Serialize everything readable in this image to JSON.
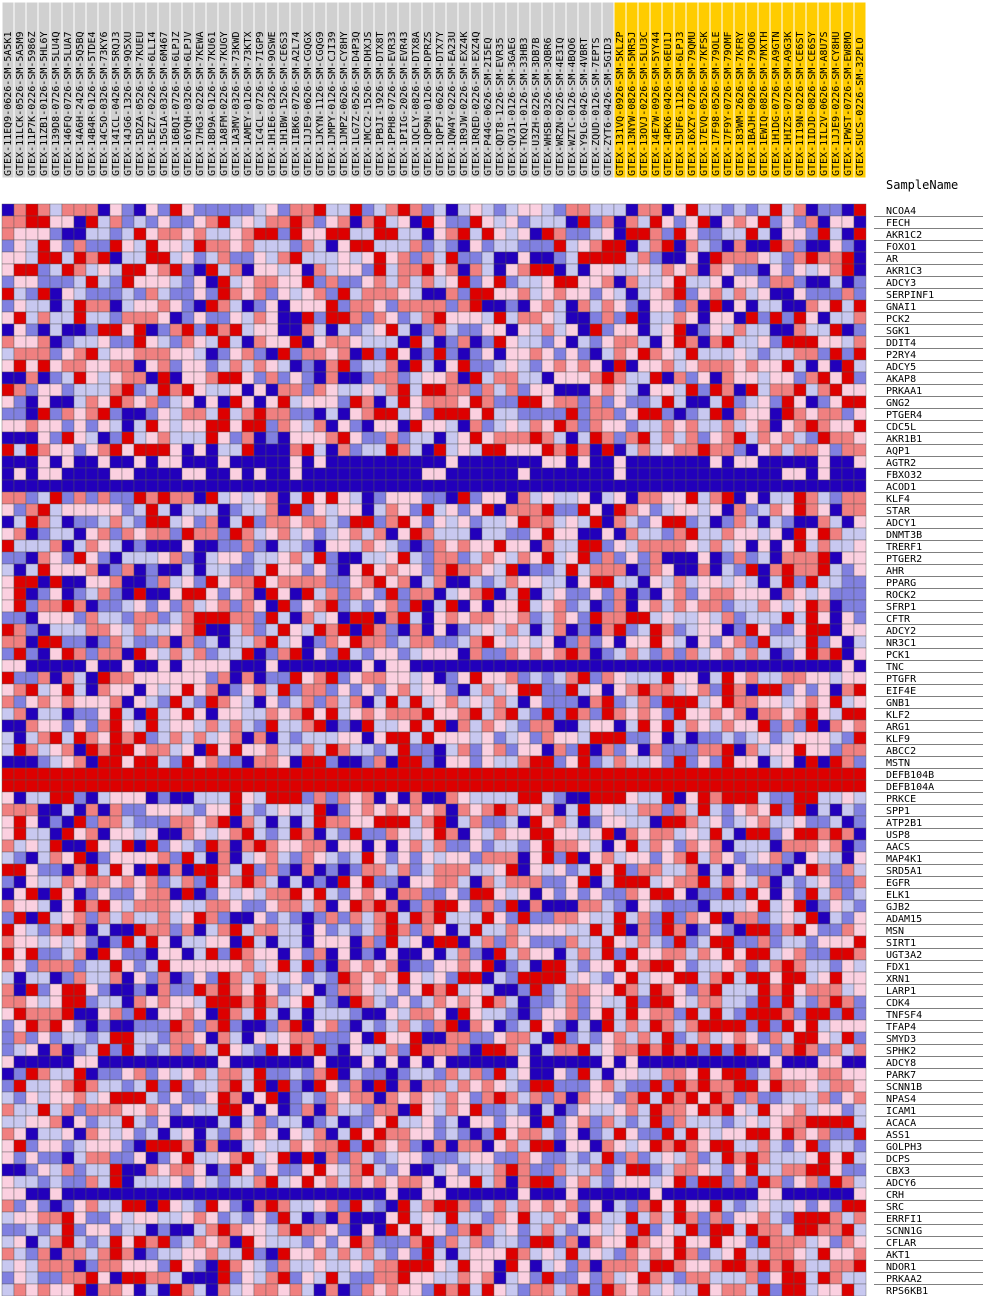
{
  "chart_data": {
    "type": "heatmap",
    "title": "",
    "column_header_label": "SampleName",
    "colors": {
      "high": "#dd0000",
      "mid_high": "#f08080",
      "mid": "#fbd0e0",
      "mid_low": "#c8c8f0",
      "low": "#8080e0",
      "lowest": "#2200bb",
      "highlight_group": "#ffcc00",
      "grid": "#555555"
    },
    "samples": [
      {
        "name": "GTEX-11EQ9-0626-SM-5A5K1",
        "group": "a"
      },
      {
        "name": "GTEX-11LCK-0526-SM-5A5M9",
        "group": "a"
      },
      {
        "name": "GTEX-11P7K-0226-SM-5986Z",
        "group": "a"
      },
      {
        "name": "GTEX-11ZB1-0126-SM-5HL6Y",
        "group": "a"
      },
      {
        "name": "GTEX-139D8-0726-SM-5LU4Q",
        "group": "a"
      },
      {
        "name": "GTEX-146FQ-0726-SM-5LUA7",
        "group": "a"
      },
      {
        "name": "GTEX-14A6H-2426-SM-5Q5BQ",
        "group": "a"
      },
      {
        "name": "GTEX-14B4R-0126-SM-5TDE4",
        "group": "a"
      },
      {
        "name": "GTEX-14C5O-0326-SM-73KY6",
        "group": "a"
      },
      {
        "name": "GTEX-14ICL-0426-SM-5RQJ3",
        "group": "a"
      },
      {
        "name": "GTEX-14JG6-1326-SM-9Q5XU",
        "group": "a"
      },
      {
        "name": "GTEX-15DZA-0526-SM-7KUEU",
        "group": "a"
      },
      {
        "name": "GTEX-15EZ7-0226-SM-6LLI4",
        "group": "a"
      },
      {
        "name": "GTEX-15G1A-0326-SM-6M467",
        "group": "a"
      },
      {
        "name": "GTEX-16BQI-0726-SM-6LPJZ",
        "group": "a"
      },
      {
        "name": "GTEX-16YQH-0326-SM-6LPJV",
        "group": "a"
      },
      {
        "name": "GTEX-17HG3-0226-SM-7KEWA",
        "group": "a"
      },
      {
        "name": "GTEX-18D9A-0126-SM-7KU61",
        "group": "a"
      },
      {
        "name": "GTEX-1A8FM-0226-SM-7KUGY",
        "group": "a"
      },
      {
        "name": "GTEX-1A3MV-0326-SM-73KWD",
        "group": "a"
      },
      {
        "name": "GTEX-1AMEY-0126-SM-73KTX",
        "group": "a"
      },
      {
        "name": "GTEX-1C4CL-0726-SM-7IGP9",
        "group": "a"
      },
      {
        "name": "GTEX-1H1E6-0326-SM-9OSWE",
        "group": "a"
      },
      {
        "name": "GTEX-1H1BW-1526-SM-CE6S3",
        "group": "a"
      },
      {
        "name": "GTEX-1IBK6-0726-SM-A2L74",
        "group": "a"
      },
      {
        "name": "GTEX-1JJE9-0626-SM-CGQGX",
        "group": "a"
      },
      {
        "name": "GTEX-1JKYN-1126-SM-CGQG9",
        "group": "a"
      },
      {
        "name": "GTEX-1JMPY-0126-SM-CJI39",
        "group": "a"
      },
      {
        "name": "GTEX-1JMPZ-0626-SM-CY8HY",
        "group": "a"
      },
      {
        "name": "GTEX-1LG7Z-0526-SM-D4P3Q",
        "group": "a"
      },
      {
        "name": "GTEX-1MCC2-1526-SM-DHXJS",
        "group": "a"
      },
      {
        "name": "GTEX-1PBJI-1926-SM-DTX8T",
        "group": "a"
      },
      {
        "name": "GTEX-1PPH8-0726-SM-EVR33",
        "group": "a"
      },
      {
        "name": "GTEX-1PIIG-2026-SM-EVR43",
        "group": "a"
      },
      {
        "name": "GTEX-1QCLY-0826-SM-DTX8A",
        "group": "a"
      },
      {
        "name": "GTEX-1QP9N-0126-SM-DPRZS",
        "group": "a"
      },
      {
        "name": "GTEX-1QPFJ-0626-SM-DTX7Y",
        "group": "a"
      },
      {
        "name": "GTEX-1QW4Y-0226-SM-EA23U",
        "group": "a"
      },
      {
        "name": "GTEX-1R9JW-0226-SM-EXZ4K",
        "group": "a"
      },
      {
        "name": "GTEX-1RQED-0226-SM-EXZ4Q",
        "group": "a"
      },
      {
        "name": "GTEX-P44G-0626-SM-2I5EQ",
        "group": "a"
      },
      {
        "name": "GTEX-QDT8-1226-SM-EVR35",
        "group": "a"
      },
      {
        "name": "GTEX-QV31-0126-SM-3GAEG",
        "group": "a"
      },
      {
        "name": "GTEX-TKQ1-0126-SM-33HB3",
        "group": "a"
      },
      {
        "name": "GTEX-U3ZH-0226-SM-3DB7B",
        "group": "a"
      },
      {
        "name": "GTEX-WHSB-0326-SM-3QBR6",
        "group": "a"
      },
      {
        "name": "GTEX-WRZN-0226-SM-4E3IQ",
        "group": "a"
      },
      {
        "name": "GTEX-WZTC-0126-SM-4BQO6",
        "group": "a"
      },
      {
        "name": "GTEX-Y9LG-0426-SM-4VBRT",
        "group": "a"
      },
      {
        "name": "GTEX-ZQUD-0126-SM-7EPTS",
        "group": "a"
      },
      {
        "name": "GTEX-ZYT6-0426-SM-5GID3",
        "group": "a"
      },
      {
        "name": "GTEX-131VQ-0926-SM-5KLZP",
        "group": "b"
      },
      {
        "name": "GTEX-13NYW-0826-SM-5MR5J",
        "group": "b"
      },
      {
        "name": "GTEX-13OVJ-0226-SM-5LU3C",
        "group": "b"
      },
      {
        "name": "GTEX-14E7W-0926-SM-5YY44",
        "group": "b"
      },
      {
        "name": "GTEX-14PK6-0426-SM-6EU1J",
        "group": "b"
      },
      {
        "name": "GTEX-15UF6-1126-SM-6LPJ3",
        "group": "b"
      },
      {
        "name": "GTEX-16XZY-0726-SM-79QMU",
        "group": "b"
      },
      {
        "name": "GTEX-17EVQ-0526-SM-7KFSK",
        "group": "b"
      },
      {
        "name": "GTEX-17F98-0526-SM-79OLE",
        "group": "b"
      },
      {
        "name": "GTEX-17F9Y-0726-SM-79OMF",
        "group": "b"
      },
      {
        "name": "GTEX-183WM-2626-SM-7KFRY",
        "group": "b"
      },
      {
        "name": "GTEX-1BAJH-0926-SM-79OO6",
        "group": "b"
      },
      {
        "name": "GTEX-1EWIQ-0826-SM-7MXTH",
        "group": "b"
      },
      {
        "name": "GTEX-1H1DG-0726-SM-A9GTN",
        "group": "b"
      },
      {
        "name": "GTEX-1HIZS-0726-SM-A9G3K",
        "group": "b"
      },
      {
        "name": "GTEX-1I19N-0226-SM-CE6ST",
        "group": "b"
      },
      {
        "name": "GTEX-1IDJD-0826-SM-CE6SY",
        "group": "b"
      },
      {
        "name": "GTEX-1IL2V-0626-SM-A8U7S",
        "group": "b"
      },
      {
        "name": "GTEX-1JJE9-0226-SM-CY8HU",
        "group": "b"
      },
      {
        "name": "GTEX-1PWST-0726-SM-EW8MO",
        "group": "b"
      },
      {
        "name": "GTEX-SUCS-0226-SM-32PLO",
        "group": "b"
      }
    ],
    "genes": [
      "NCOA4",
      "FECH",
      "AKR1C2",
      "FOXO1",
      "AR",
      "AKR1C3",
      "ADCY3",
      "SERPINF1",
      "GNAI1",
      "PCK2",
      "SGK1",
      "DDIT4",
      "P2RY4",
      "ADCY5",
      "AKAP8",
      "PRKAA1",
      "GNG2",
      "PTGER4",
      "CDC5L",
      "AKR1B1",
      "AQP1",
      "AGTR2",
      "FBXO32",
      "ACOD1",
      "KLF4",
      "STAR",
      "ADCY1",
      "DNMT3B",
      "TRERF1",
      "PTGER2",
      "AHR",
      "PPARG",
      "ROCK2",
      "SFRP1",
      "CFTR",
      "ADCY2",
      "NR3C1",
      "PCK1",
      "TNC",
      "PTGFR",
      "EIF4E",
      "GNB1",
      "KLF2",
      "ARG1",
      "KLF9",
      "ABCC2",
      "MSTN",
      "DEFB104B",
      "DEFB104A",
      "PRKCE",
      "SPP1",
      "ATP2B1",
      "USP8",
      "AACS",
      "MAP4K1",
      "SRD5A1",
      "EGFR",
      "ELK1",
      "GJB2",
      "ADAM15",
      "MSN",
      "SIRT1",
      "UGT3A2",
      "FDX1",
      "XRN1",
      "LARP1",
      "CDK4",
      "TNFSF4",
      "TFAP4",
      "SMYD3",
      "SPHK2",
      "ADCY8",
      "PARK7",
      "SCNN1B",
      "NPAS4",
      "ICAM1",
      "ACACA",
      "ASS1",
      "GOLPH3",
      "DCPS",
      "CBX3",
      "ADCY6",
      "CRH",
      "SRC",
      "ERRFI1",
      "SCNN1G",
      "CFLAR",
      "AKT1",
      "NDOR1",
      "PRKAA2",
      "RPS6KB1"
    ],
    "value_scale": "relative expression, z-score like: -3 (blue) to +3 (red)",
    "row_patterns": {
      "DEFB104B": "all_high",
      "DEFB104A": "all_high",
      "FBXO32": "mostly_low",
      "ACOD1": "all_low",
      "AGTR2": "mostly_low",
      "CRH": "mostly_low",
      "TNC": "mostly_low",
      "ADCY8": "mostly_low"
    }
  }
}
